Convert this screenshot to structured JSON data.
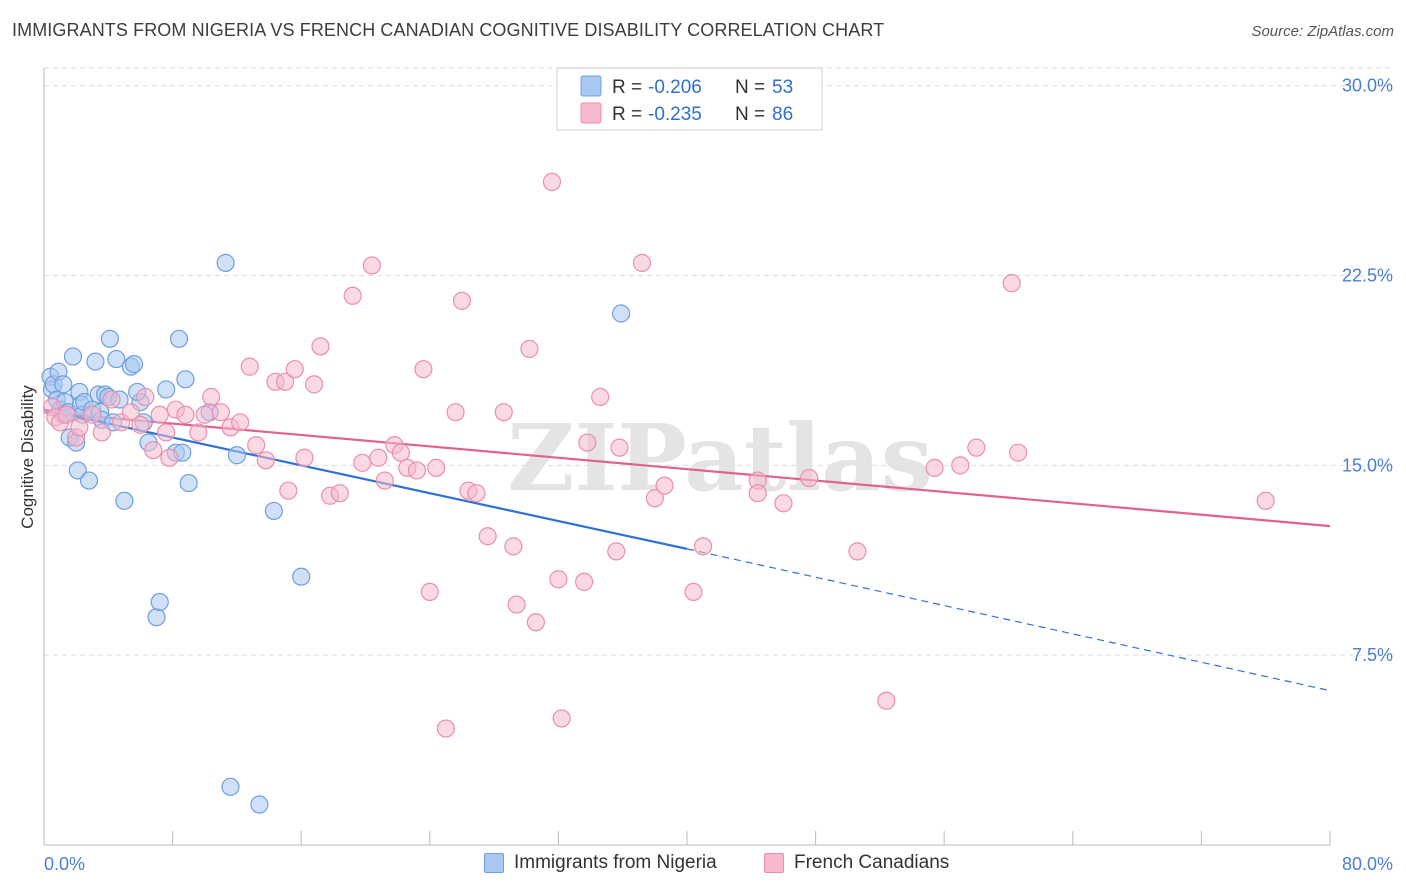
{
  "title": "IMMIGRANTS FROM NIGERIA VS FRENCH CANADIAN COGNITIVE DISABILITY CORRELATION CHART",
  "source": "Source: ZipAtlas.com",
  "watermark": "ZIPatlas",
  "colors": {
    "blue_fill": "#a9c8f0",
    "blue_stroke": "#6f9fe0",
    "blue_line": "#2f72d6",
    "pink_fill": "#f6b9cc",
    "pink_stroke": "#ea8fae",
    "pink_line": "#e0628f",
    "tick_text": "#4a7fd1",
    "grid": "#dddddd"
  },
  "legend": {
    "rows": [
      {
        "r_label": "R =",
        "r_value": "-0.206",
        "n_label": "N =",
        "n_value": "53",
        "color": "blue"
      },
      {
        "r_label": "R =",
        "r_value": "-0.235",
        "n_label": "N =",
        "n_value": "86",
        "color": "pink"
      }
    ]
  },
  "bottom_legend": [
    {
      "label": "Immigrants from Nigeria",
      "color": "blue"
    },
    {
      "label": "French Canadians",
      "color": "pink"
    }
  ],
  "chart_data": {
    "type": "scatter",
    "ylabel": "Cognitive Disability",
    "xlim": [
      0,
      80
    ],
    "ylim": [
      0,
      30.7
    ],
    "x_tick_labels": [
      {
        "value": 0,
        "label": "0.0%"
      },
      {
        "value": 80,
        "label": "80.0%"
      }
    ],
    "y_ticks": [
      {
        "value": 7.5,
        "label": "7.5%"
      },
      {
        "value": 15.0,
        "label": "15.0%"
      },
      {
        "value": 22.5,
        "label": "22.5%"
      },
      {
        "value": 30.0,
        "label": "30.0%"
      }
    ],
    "x_minor_ticks": [
      0,
      8,
      16,
      24,
      32,
      40,
      48,
      56,
      64,
      72,
      80
    ],
    "series": [
      {
        "name": "Immigrants from Nigeria",
        "color": "blue",
        "points": [
          [
            0.4,
            18.5
          ],
          [
            0.5,
            18.0
          ],
          [
            0.6,
            18.2
          ],
          [
            0.8,
            17.6
          ],
          [
            0.9,
            18.7
          ],
          [
            1.0,
            17.2
          ],
          [
            1.2,
            17.0
          ],
          [
            1.3,
            17.5
          ],
          [
            1.5,
            17.1
          ],
          [
            1.6,
            16.1
          ],
          [
            1.8,
            19.3
          ],
          [
            2.0,
            15.9
          ],
          [
            2.1,
            14.8
          ],
          [
            2.2,
            17.9
          ],
          [
            2.3,
            17.4
          ],
          [
            2.4,
            17.0
          ],
          [
            2.5,
            17.5
          ],
          [
            2.8,
            14.4
          ],
          [
            3.0,
            17.2
          ],
          [
            3.2,
            19.1
          ],
          [
            3.4,
            17.8
          ],
          [
            3.5,
            17.1
          ],
          [
            3.6,
            16.8
          ],
          [
            3.8,
            17.8
          ],
          [
            4.0,
            17.7
          ],
          [
            4.1,
            20.0
          ],
          [
            4.3,
            16.7
          ],
          [
            4.5,
            19.2
          ],
          [
            4.7,
            17.6
          ],
          [
            5.0,
            13.6
          ],
          [
            5.4,
            18.9
          ],
          [
            5.6,
            19.0
          ],
          [
            6.0,
            17.5
          ],
          [
            6.2,
            16.7
          ],
          [
            6.5,
            15.9
          ],
          [
            7.0,
            9.0
          ],
          [
            7.2,
            9.6
          ],
          [
            7.6,
            18.0
          ],
          [
            8.2,
            15.5
          ],
          [
            8.6,
            15.5
          ],
          [
            9.0,
            14.3
          ],
          [
            8.4,
            20.0
          ],
          [
            8.8,
            18.4
          ],
          [
            10.3,
            17.1
          ],
          [
            11.3,
            23.0
          ],
          [
            12.0,
            15.4
          ],
          [
            11.6,
            2.3
          ],
          [
            13.4,
            1.6
          ],
          [
            14.3,
            13.2
          ],
          [
            16.0,
            10.6
          ],
          [
            5.8,
            17.9
          ],
          [
            1.2,
            18.2
          ],
          [
            35.9,
            21.0
          ]
        ],
        "trend": {
          "x0": 0,
          "y0": 17.2,
          "x1": 40,
          "y1": 11.7,
          "dash_to_x": 80,
          "dash_to_y": 6.1
        }
      },
      {
        "name": "French Canadians",
        "color": "pink",
        "points": [
          [
            0.5,
            17.3
          ],
          [
            0.7,
            16.9
          ],
          [
            1.0,
            16.7
          ],
          [
            1.4,
            17.0
          ],
          [
            2.0,
            16.1
          ],
          [
            2.2,
            16.5
          ],
          [
            3.0,
            17.0
          ],
          [
            3.6,
            16.3
          ],
          [
            4.2,
            17.6
          ],
          [
            4.8,
            16.7
          ],
          [
            5.4,
            17.1
          ],
          [
            6.0,
            16.6
          ],
          [
            6.3,
            17.7
          ],
          [
            6.8,
            15.6
          ],
          [
            7.2,
            17.0
          ],
          [
            7.8,
            15.3
          ],
          [
            8.2,
            17.2
          ],
          [
            8.8,
            17.0
          ],
          [
            9.6,
            16.3
          ],
          [
            10.0,
            17.0
          ],
          [
            10.4,
            17.7
          ],
          [
            11.0,
            17.1
          ],
          [
            11.6,
            16.5
          ],
          [
            12.2,
            16.7
          ],
          [
            12.8,
            18.9
          ],
          [
            13.2,
            15.8
          ],
          [
            13.8,
            15.2
          ],
          [
            14.4,
            18.3
          ],
          [
            15.0,
            18.3
          ],
          [
            15.2,
            14.0
          ],
          [
            15.6,
            18.8
          ],
          [
            16.2,
            15.3
          ],
          [
            16.8,
            18.2
          ],
          [
            17.2,
            19.7
          ],
          [
            17.8,
            13.8
          ],
          [
            18.4,
            13.9
          ],
          [
            19.2,
            21.7
          ],
          [
            19.8,
            15.1
          ],
          [
            20.4,
            22.9
          ],
          [
            20.8,
            15.3
          ],
          [
            21.2,
            14.4
          ],
          [
            21.8,
            15.8
          ],
          [
            22.2,
            15.5
          ],
          [
            22.6,
            14.9
          ],
          [
            23.2,
            14.8
          ],
          [
            23.6,
            18.8
          ],
          [
            24.0,
            10.0
          ],
          [
            24.4,
            14.9
          ],
          [
            25.0,
            4.6
          ],
          [
            25.6,
            17.1
          ],
          [
            26.0,
            21.5
          ],
          [
            26.4,
            14.0
          ],
          [
            26.9,
            13.9
          ],
          [
            27.6,
            12.2
          ],
          [
            28.6,
            17.1
          ],
          [
            29.2,
            11.8
          ],
          [
            29.4,
            9.5
          ],
          [
            30.2,
            19.6
          ],
          [
            30.6,
            8.8
          ],
          [
            31.6,
            26.2
          ],
          [
            32.0,
            10.5
          ],
          [
            32.2,
            5.0
          ],
          [
            33.6,
            10.4
          ],
          [
            33.8,
            15.9
          ],
          [
            34.6,
            17.7
          ],
          [
            35.6,
            11.6
          ],
          [
            35.8,
            15.7
          ],
          [
            37.2,
            23.0
          ],
          [
            37.4,
            29.6
          ],
          [
            38.0,
            13.7
          ],
          [
            38.6,
            14.2
          ],
          [
            40.4,
            10.0
          ],
          [
            41.0,
            11.8
          ],
          [
            44.4,
            14.4
          ],
          [
            44.4,
            13.9
          ],
          [
            46.0,
            13.5
          ],
          [
            47.6,
            14.5
          ],
          [
            50.6,
            11.6
          ],
          [
            52.4,
            5.7
          ],
          [
            55.4,
            14.9
          ],
          [
            57.0,
            15.0
          ],
          [
            58.0,
            15.7
          ],
          [
            60.2,
            22.2
          ],
          [
            60.6,
            15.5
          ],
          [
            76.0,
            13.6
          ],
          [
            7.6,
            16.3
          ]
        ],
        "trend": {
          "x0": 0,
          "y0": 17.1,
          "x1": 80,
          "y1": 12.6
        }
      }
    ]
  }
}
